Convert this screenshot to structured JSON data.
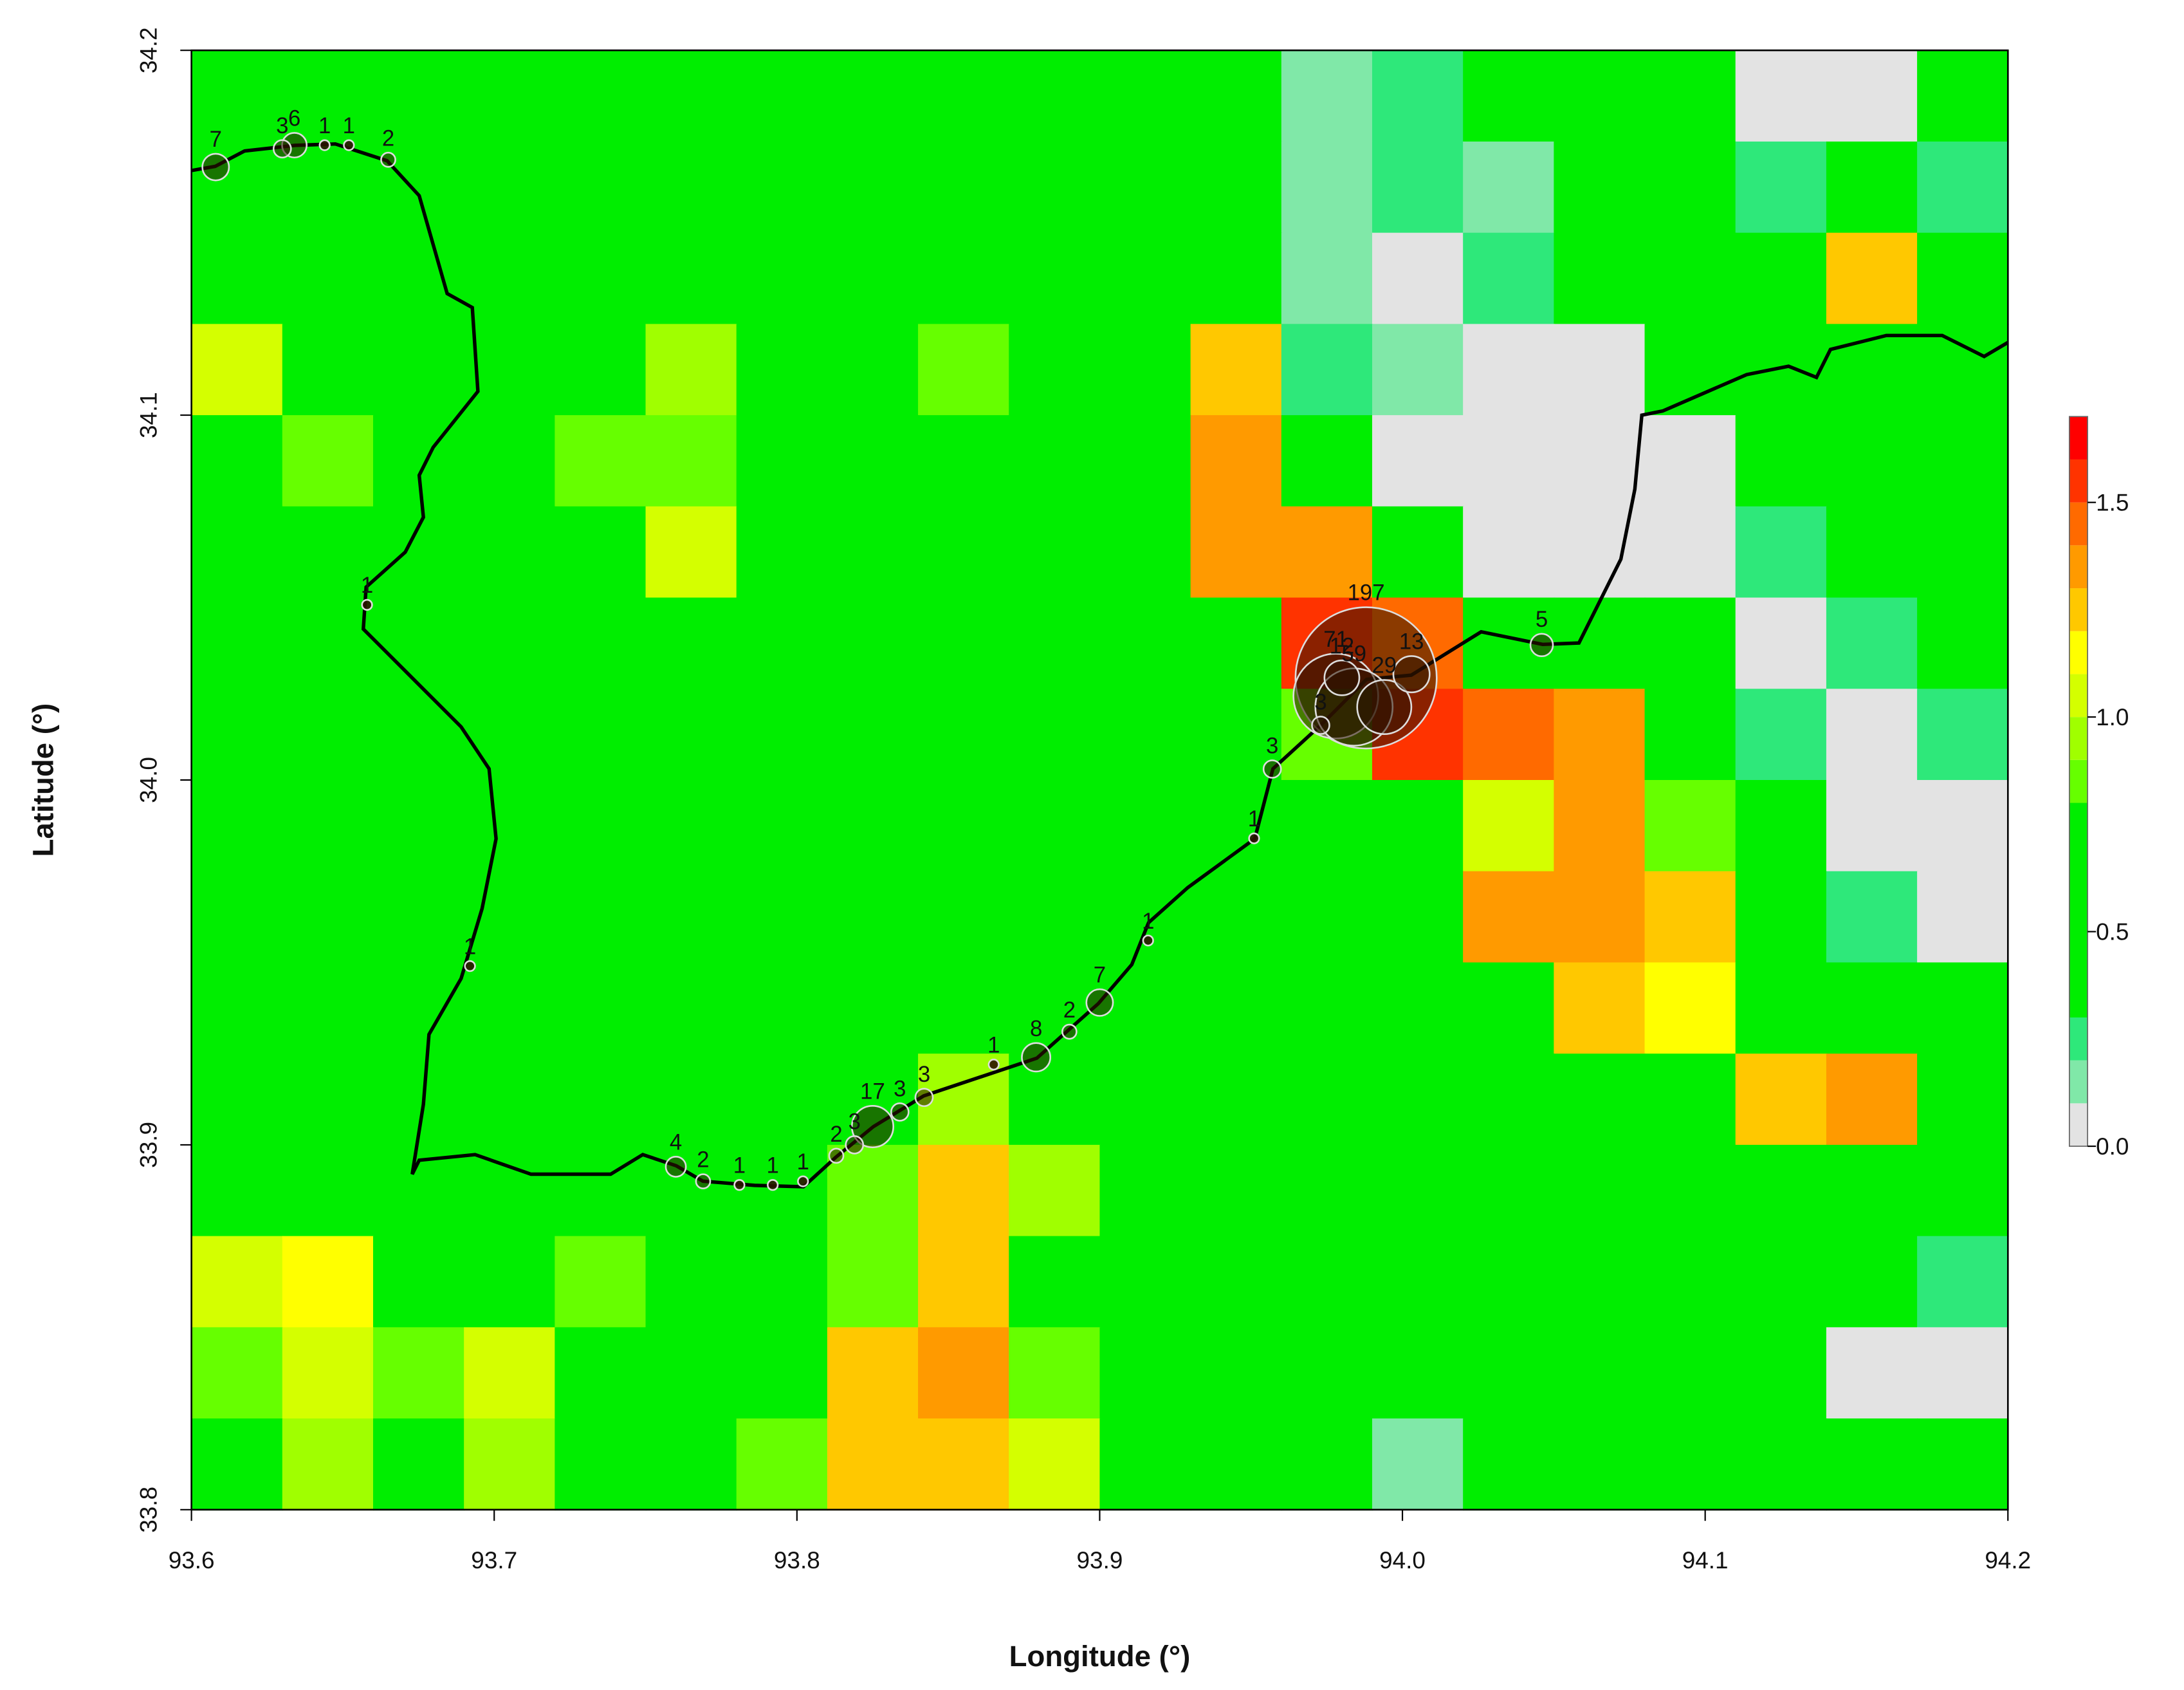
{
  "chart_data": {
    "type": "map",
    "x_label": "Longitude (°)",
    "y_label": "Latitude (°)",
    "xlim": [
      93.6,
      94.2
    ],
    "ylim": [
      33.8,
      34.2
    ],
    "xticks": [
      93.6,
      93.7,
      93.8,
      93.9,
      {
        "value": 94,
        "label": "94.0"
      },
      94.1,
      94.2
    ],
    "yticks": [
      33.8,
      33.9,
      {
        "value": 34,
        "label": "34.0"
      },
      34.1,
      34.2
    ],
    "grid_values": [
      [
        0.6,
        0.6,
        0.7,
        0.6,
        0.6,
        0.6,
        0.5,
        0.6,
        0.6,
        0.4,
        0.3,
        0.5,
        0.1,
        0.2,
        0.3,
        0.6,
        0.5,
        0.05,
        0.05,
        0.3
      ],
      [
        0.7,
        0.7,
        0.7,
        0.6,
        0.6,
        0.6,
        0.6,
        0.5,
        0.5,
        0.3,
        0.3,
        0.4,
        0.1,
        0.2,
        0.1,
        0.4,
        0.6,
        0.2,
        0.3,
        0.2
      ],
      [
        0.7,
        0.6,
        0.7,
        0.6,
        0.6,
        0.6,
        0.6,
        0.6,
        0.4,
        0.6,
        0.4,
        0.5,
        0.1,
        0.05,
        0.2,
        0.3,
        0.5,
        0.4,
        1.2,
        0.3
      ],
      [
        1.0,
        0.7,
        0.6,
        0.6,
        0.6,
        0.9,
        0.6,
        0.6,
        0.8,
        0.6,
        0.6,
        1.2,
        0.2,
        0.1,
        0.05,
        0.05,
        0.3,
        0.5,
        0.5,
        0.6
      ],
      [
        0.7,
        0.8,
        0.6,
        0.6,
        0.8,
        0.8,
        0.6,
        0.6,
        0.6,
        0.6,
        0.7,
        1.3,
        0.3,
        0.05,
        0.05,
        0.05,
        0.05,
        0.3,
        0.4,
        0.5
      ],
      [
        0.6,
        0.6,
        0.6,
        0.6,
        0.6,
        1.0,
        0.6,
        0.6,
        0.6,
        0.6,
        0.6,
        1.3,
        1.3,
        0.3,
        0.05,
        0.05,
        0.05,
        0.2,
        0.3,
        0.5
      ],
      [
        0.6,
        0.6,
        0.6,
        0.6,
        0.6,
        0.6,
        0.6,
        0.6,
        0.6,
        0.6,
        0.6,
        0.6,
        1.5,
        1.4,
        0.5,
        0.6,
        0.4,
        0.05,
        0.2,
        0.3
      ],
      [
        0.6,
        0.6,
        0.6,
        0.6,
        0.6,
        0.6,
        0.6,
        0.6,
        0.6,
        0.6,
        0.6,
        0.6,
        0.8,
        1.5,
        1.4,
        1.3,
        0.6,
        0.2,
        0.05,
        0.2
      ],
      [
        0.6,
        0.6,
        0.6,
        0.6,
        0.6,
        0.6,
        0.6,
        0.6,
        0.6,
        0.6,
        0.6,
        0.6,
        0.6,
        0.7,
        1.0,
        1.3,
        0.8,
        0.4,
        0.05,
        0.05
      ],
      [
        0.6,
        0.4,
        0.6,
        0.6,
        0.6,
        0.6,
        0.6,
        0.6,
        0.6,
        0.6,
        0.6,
        0.6,
        0.6,
        0.6,
        1.3,
        1.3,
        1.2,
        0.4,
        0.2,
        0.05
      ],
      [
        0.6,
        0.6,
        0.6,
        0.6,
        0.6,
        0.6,
        0.6,
        0.6,
        0.6,
        0.6,
        0.6,
        0.6,
        0.6,
        0.6,
        0.6,
        1.2,
        1.1,
        0.5,
        0.6,
        0.4
      ],
      [
        0.6,
        0.6,
        0.6,
        0.6,
        0.6,
        0.6,
        0.6,
        0.6,
        0.9,
        0.6,
        0.6,
        0.6,
        0.7,
        0.6,
        0.6,
        0.6,
        0.5,
        1.2,
        1.3,
        0.6
      ],
      [
        0.6,
        0.6,
        0.6,
        0.6,
        0.6,
        0.6,
        0.6,
        0.8,
        1.2,
        0.9,
        0.6,
        0.6,
        0.6,
        0.6,
        0.6,
        0.7,
        0.6,
        0.5,
        0.6,
        0.4
      ],
      [
        1.0,
        1.1,
        0.6,
        0.7,
        0.8,
        0.6,
        0.6,
        0.8,
        1.2,
        0.7,
        0.6,
        0.6,
        0.6,
        0.5,
        0.6,
        0.6,
        0.6,
        0.4,
        0.4,
        0.2
      ],
      [
        0.8,
        1.0,
        0.8,
        1.0,
        0.7,
        0.6,
        0.6,
        1.2,
        1.3,
        0.8,
        0.6,
        0.6,
        0.6,
        0.6,
        0.5,
        0.5,
        0.6,
        0.6,
        0.05,
        0.05
      ],
      [
        0.6,
        0.9,
        0.6,
        0.9,
        0.6,
        0.6,
        0.8,
        1.2,
        1.2,
        1.0,
        0.6,
        0.6,
        0.6,
        0.1,
        0.5,
        0.6,
        0.6,
        0.6,
        0.6,
        0.3
      ]
    ],
    "colorbar": {
      "lim": [
        0,
        1.7
      ],
      "ticks": [
        {
          "value": 0,
          "label": "0.0"
        },
        0.5,
        {
          "value": 1,
          "label": "1.0"
        },
        1.5
      ],
      "breaks": [
        0,
        0.1,
        0.2,
        0.3,
        0.8,
        0.9,
        1.0,
        1.1,
        1.2,
        1.3,
        1.4,
        1.5,
        1.6,
        1.7
      ],
      "colors": [
        "#e3e3e3",
        "#80e8a8",
        "#2ee87a",
        "#00ee00",
        "#66ff00",
        "#a0ff00",
        "#d4ff00",
        "#ffff00",
        "#ffc800",
        "#ff9a00",
        "#ff6a00",
        "#ff3300",
        "#ff0000"
      ]
    },
    "points": {
      "point_color": "#2b1200",
      "lon": [
        93.608,
        93.63,
        93.634,
        93.644,
        93.652,
        93.665,
        93.658,
        93.692,
        93.76,
        93.769,
        93.781,
        93.792,
        93.802,
        93.813,
        93.819,
        93.825,
        93.834,
        93.842,
        93.865,
        93.879,
        93.89,
        93.9,
        93.916,
        93.951,
        93.957,
        93.973,
        93.978,
        93.98,
        93.988,
        93.984,
        93.994,
        94.003,
        94.046
      ],
      "lat": [
        34.168,
        34.173,
        34.174,
        34.174,
        34.174,
        34.17,
        34.048,
        33.949,
        33.894,
        33.89,
        33.889,
        33.889,
        33.89,
        33.897,
        33.9,
        33.905,
        33.909,
        33.913,
        33.922,
        33.924,
        33.931,
        33.939,
        33.956,
        33.984,
        34.003,
        34.015,
        34.023,
        34.028,
        34.028,
        34.02,
        34.02,
        34.029,
        34.037
      ],
      "counts": [
        7,
        3,
        6,
        1,
        1,
        2,
        1,
        1,
        4,
        2,
        1,
        1,
        1,
        2,
        3,
        17,
        3,
        3,
        1,
        8,
        2,
        7,
        1,
        1,
        3,
        3,
        71,
        12,
        197,
        59,
        29,
        13,
        5
      ]
    }
  }
}
